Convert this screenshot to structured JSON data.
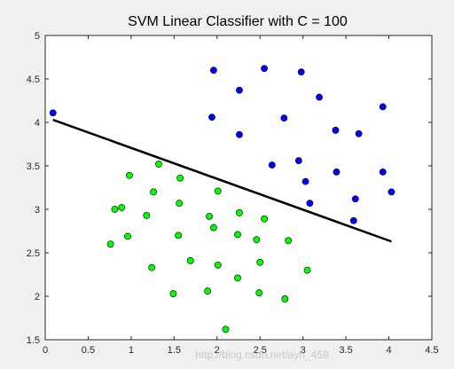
{
  "chart_data": {
    "type": "scatter",
    "title": "SVM Linear Classifier with C = 100",
    "xlabel": "",
    "ylabel": "",
    "xlim": [
      0,
      4.5
    ],
    "ylim": [
      1.5,
      5
    ],
    "xticks": [
      "0",
      "0.5",
      "1",
      "1.5",
      "2",
      "2.5",
      "3",
      "3.5",
      "4",
      "4.5"
    ],
    "yticks": [
      "1.5",
      "2",
      "2.5",
      "3",
      "3.5",
      "4",
      "4.5",
      "5"
    ],
    "grid": false,
    "legend": "none",
    "series": [
      {
        "color": "#0000ff",
        "marker": "filled-circle",
        "points": [
          [
            0.09,
            4.11
          ],
          [
            1.96,
            4.6
          ],
          [
            2.55,
            4.62
          ],
          [
            2.98,
            4.58
          ],
          [
            2.26,
            4.37
          ],
          [
            3.19,
            4.29
          ],
          [
            3.93,
            4.18
          ],
          [
            1.94,
            4.06
          ],
          [
            2.78,
            4.05
          ],
          [
            2.26,
            3.86
          ],
          [
            3.38,
            3.91
          ],
          [
            3.65,
            3.87
          ],
          [
            2.64,
            3.51
          ],
          [
            2.95,
            3.56
          ],
          [
            3.39,
            3.43
          ],
          [
            3.93,
            3.43
          ],
          [
            3.03,
            3.32
          ],
          [
            4.03,
            3.2
          ],
          [
            3.08,
            3.07
          ],
          [
            3.61,
            3.12
          ],
          [
            3.59,
            2.87
          ]
        ]
      },
      {
        "color": "#00ff00",
        "marker": "filled-circle",
        "points": [
          [
            1.32,
            3.52
          ],
          [
            0.98,
            3.39
          ],
          [
            1.57,
            3.36
          ],
          [
            1.26,
            3.2
          ],
          [
            2.01,
            3.21
          ],
          [
            0.81,
            3.0
          ],
          [
            0.89,
            3.02
          ],
          [
            1.56,
            3.07
          ],
          [
            1.18,
            2.93
          ],
          [
            1.91,
            2.92
          ],
          [
            2.26,
            2.96
          ],
          [
            2.55,
            2.89
          ],
          [
            1.96,
            2.79
          ],
          [
            0.96,
            2.69
          ],
          [
            1.55,
            2.7
          ],
          [
            2.24,
            2.71
          ],
          [
            2.46,
            2.65
          ],
          [
            2.83,
            2.64
          ],
          [
            0.76,
            2.6
          ],
          [
            1.69,
            2.41
          ],
          [
            2.01,
            2.36
          ],
          [
            2.5,
            2.39
          ],
          [
            1.24,
            2.33
          ],
          [
            3.05,
            2.3
          ],
          [
            2.24,
            2.21
          ],
          [
            1.49,
            2.03
          ],
          [
            1.89,
            2.06
          ],
          [
            2.49,
            2.04
          ],
          [
            2.79,
            1.97
          ],
          [
            2.1,
            1.62
          ]
        ]
      }
    ],
    "lines": [
      {
        "color": "#000000",
        "points": [
          [
            0.09,
            4.03
          ],
          [
            4.03,
            2.63
          ]
        ]
      }
    ]
  },
  "watermark": "http://blog.csdn.net/ayh_459"
}
